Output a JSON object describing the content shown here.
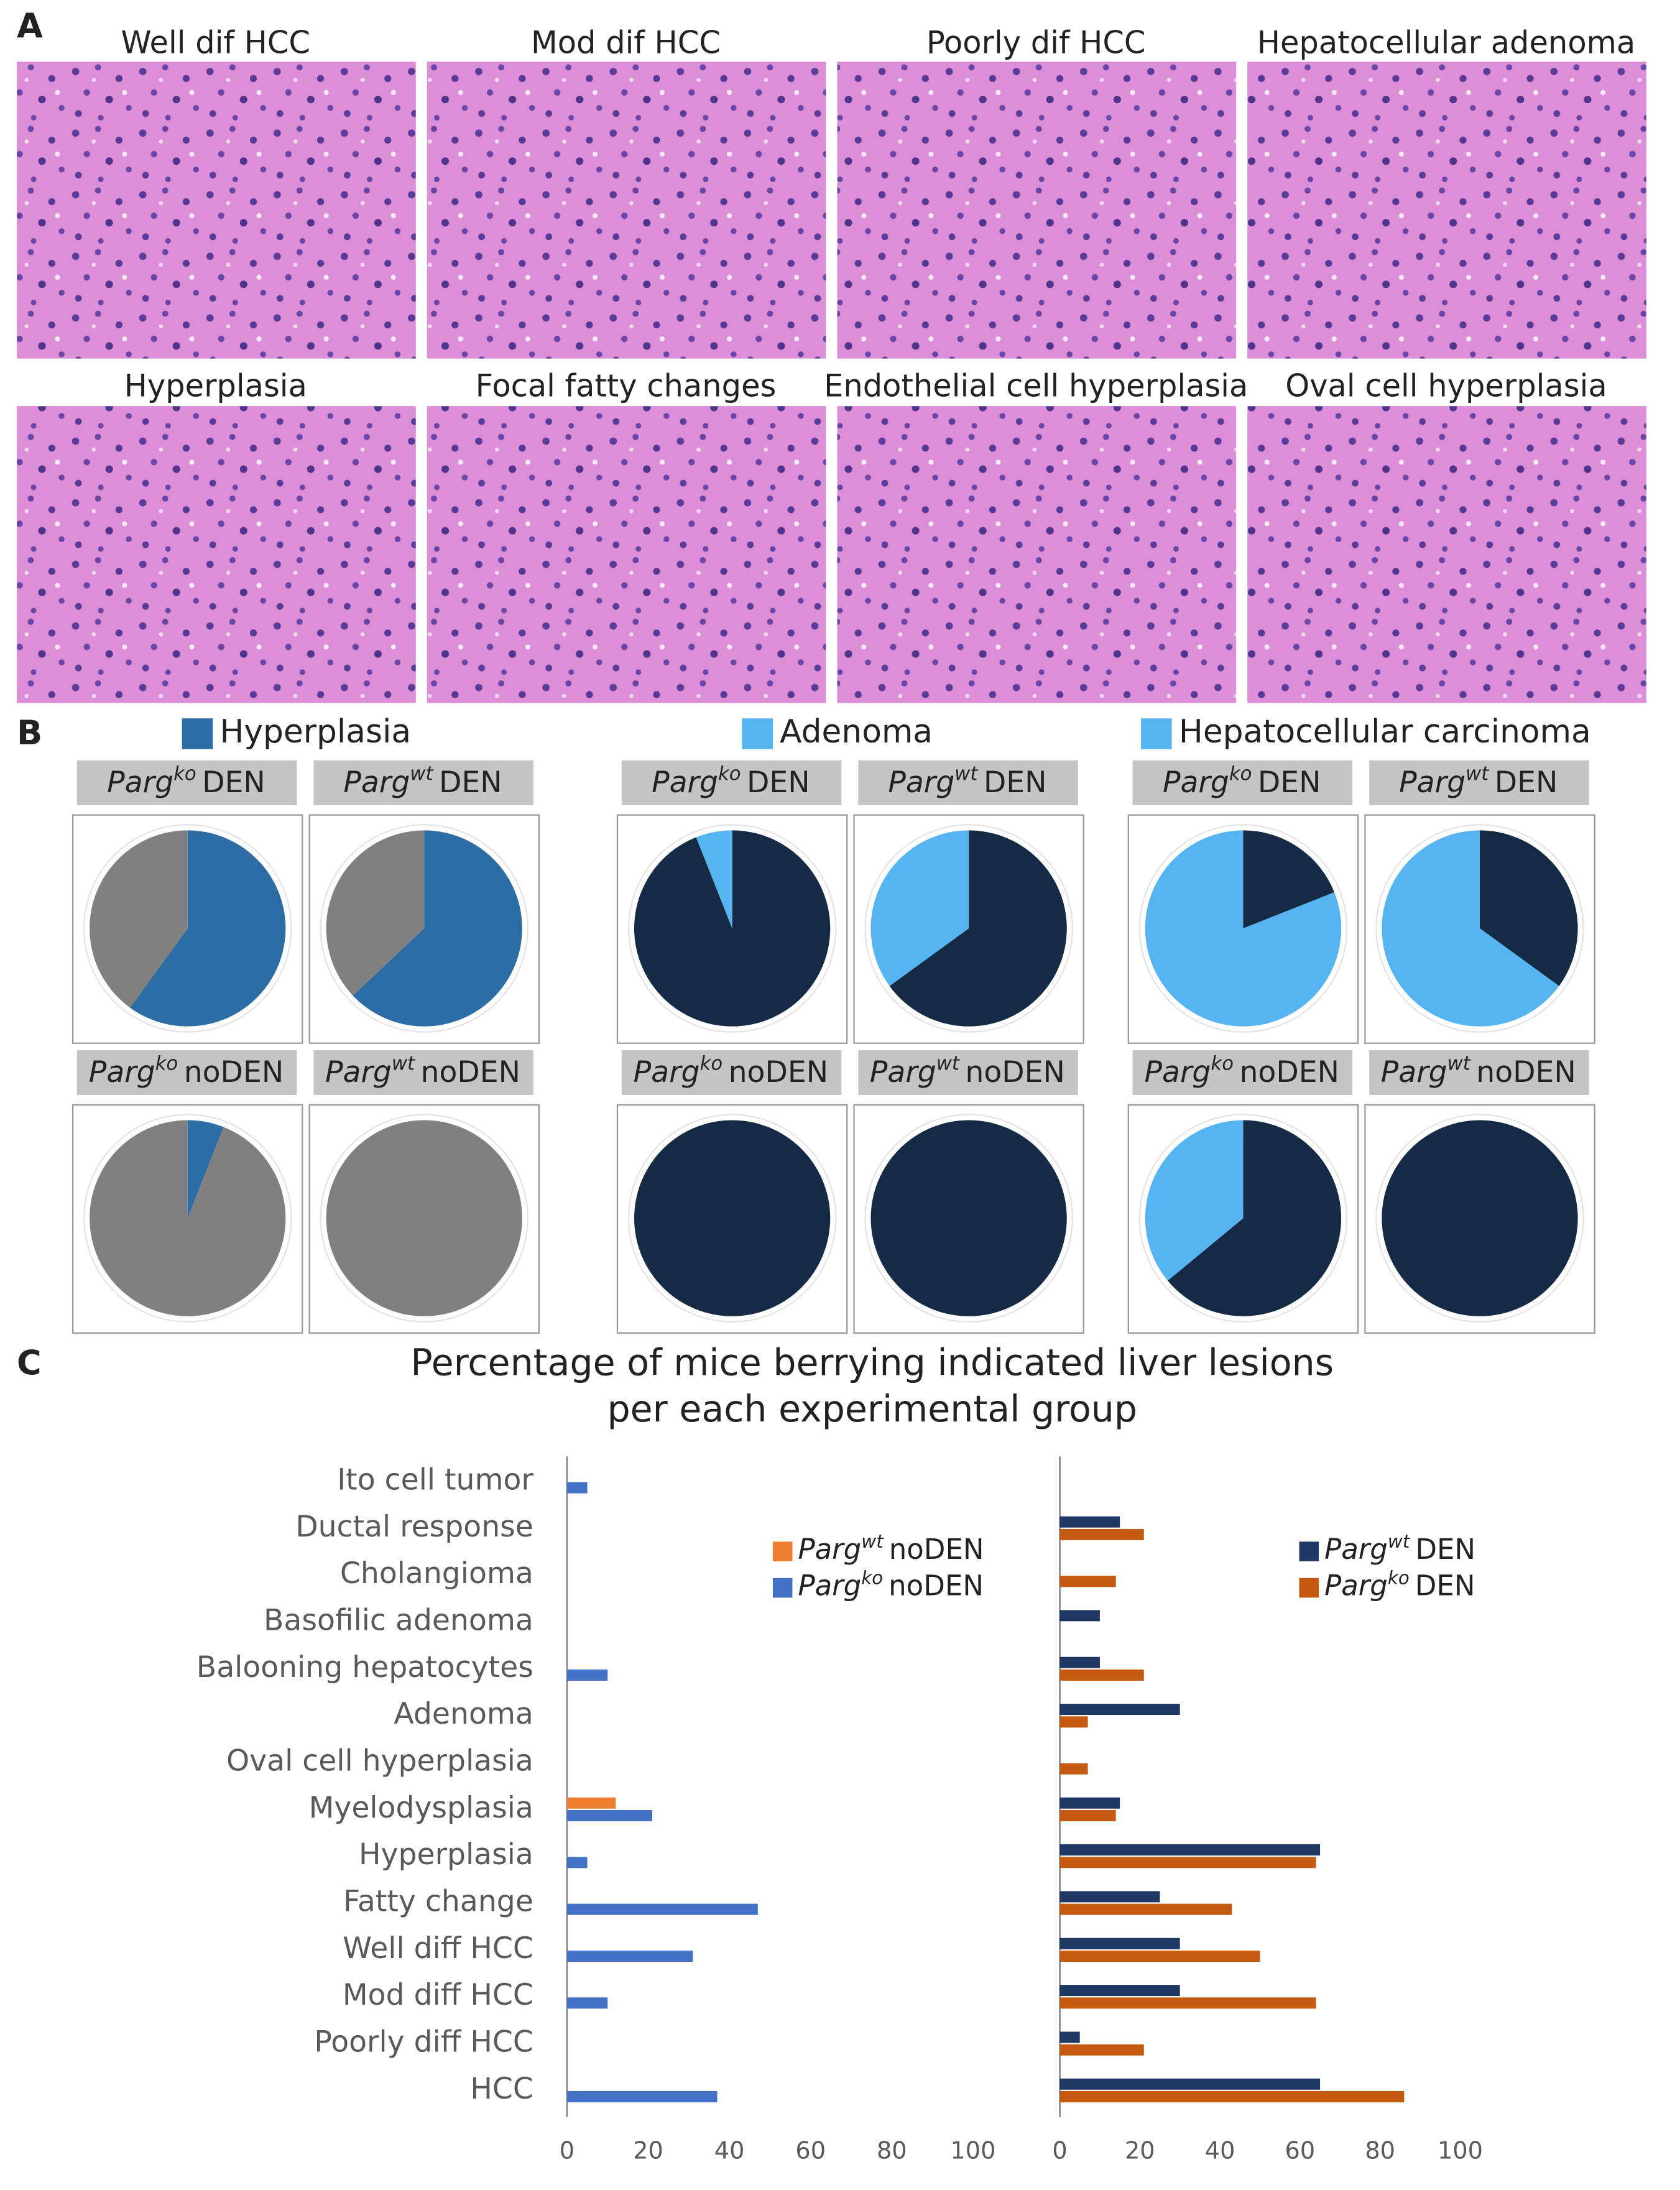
{
  "panel_labels": [
    "A",
    "B",
    "C"
  ],
  "image_labels": [
    "Well dif HCC",
    "Mod dif HCC",
    "Poorly dif HCC",
    "Hepatocellular adenoma",
    "Hyperplasia",
    "Focal fatty changes",
    "Endothelial cell hyperplasia",
    "Oval cell hyperplasia"
  ],
  "chart_data": [
    {
      "type": "pie",
      "legend": {
        "label": "Hyperplasia",
        "color": "#2e6da4"
      },
      "slice_colors": [
        "#2e6da4",
        "#808080"
      ],
      "pies": [
        {
          "label": {
            "gene": "Parg",
            "genotype": "ko",
            "treatment": "DEN"
          },
          "values": [
            60,
            40
          ]
        },
        {
          "label": {
            "gene": "Parg",
            "genotype": "wt",
            "treatment": "DEN"
          },
          "values": [
            63,
            37
          ]
        },
        {
          "label": {
            "gene": "Parg",
            "genotype": "ko",
            "treatment": "noDEN"
          },
          "values": [
            6,
            94
          ]
        },
        {
          "label": {
            "gene": "Parg",
            "genotype": "wt",
            "treatment": "noDEN"
          },
          "values": [
            0,
            100
          ]
        }
      ]
    },
    {
      "type": "pie",
      "legend": {
        "label": "Adenoma",
        "color": "#56b4f0"
      },
      "slice_colors": [
        "#152a45",
        "#56b4f0"
      ],
      "pies": [
        {
          "label": {
            "gene": "Parg",
            "genotype": "ko",
            "treatment": "DEN"
          },
          "values": [
            94,
            6
          ]
        },
        {
          "label": {
            "gene": "Parg",
            "genotype": "wt",
            "treatment": "DEN"
          },
          "values": [
            65,
            35
          ]
        },
        {
          "label": {
            "gene": "Parg",
            "genotype": "ko",
            "treatment": "noDEN"
          },
          "values": [
            100,
            0
          ]
        },
        {
          "label": {
            "gene": "Parg",
            "genotype": "wt",
            "treatment": "noDEN"
          },
          "values": [
            100,
            0
          ]
        }
      ]
    },
    {
      "type": "pie",
      "legend": {
        "label": "Hepatocellular carcinoma",
        "color": "#56b4f0"
      },
      "slice_colors": [
        "#152a45",
        "#56b4f0"
      ],
      "pies": [
        {
          "label": {
            "gene": "Parg",
            "genotype": "ko",
            "treatment": "DEN"
          },
          "values": [
            19,
            81
          ]
        },
        {
          "label": {
            "gene": "Parg",
            "genotype": "wt",
            "treatment": "DEN"
          },
          "values": [
            35,
            65
          ]
        },
        {
          "label": {
            "gene": "Parg",
            "genotype": "ko",
            "treatment": "noDEN"
          },
          "values": [
            64,
            36
          ]
        },
        {
          "label": {
            "gene": "Parg",
            "genotype": "wt",
            "treatment": "noDEN"
          },
          "values": [
            100,
            0
          ]
        }
      ]
    },
    {
      "type": "bar",
      "orientation": "horizontal",
      "title": [
        "Percentage of mice berrying indicated liver lesions",
        "per each experimental group"
      ],
      "categories": [
        "Ito cell tumor",
        "Ductal response",
        "Cholangioma",
        "Basofilic adenoma",
        "Balooning hepatocytes",
        "Adenoma",
        "Oval cell hyperplasia",
        "Myelodysplasia",
        "Hyperplasia",
        "Fatty change",
        "Well diff HCC",
        "Mod diff HCC",
        "Poorly diff HCC",
        "HCC"
      ],
      "subplots": [
        {
          "xlim": [
            0,
            100
          ],
          "xticks": [
            0,
            20,
            40,
            60,
            80,
            100
          ],
          "series": [
            {
              "name": {
                "gene": "Parg",
                "genotype": "wt",
                "treatment": "noDEN"
              },
              "color": "#ed7d31",
              "values": [
                0,
                0,
                0,
                0,
                0,
                0,
                0,
                12,
                0,
                0,
                0,
                0,
                0,
                0
              ]
            },
            {
              "name": {
                "gene": "Parg",
                "genotype": "ko",
                "treatment": "noDEN"
              },
              "color": "#4472c4",
              "values": [
                5,
                0,
                0,
                0,
                10,
                0,
                0,
                21,
                5,
                47,
                31,
                10,
                0,
                37
              ]
            }
          ]
        },
        {
          "xlim": [
            0,
            100
          ],
          "xticks": [
            0,
            20,
            40,
            60,
            80,
            100
          ],
          "series": [
            {
              "name": {
                "gene": "Parg",
                "genotype": "wt",
                "treatment": "DEN"
              },
              "color": "#1f3864",
              "values": [
                0,
                15,
                0,
                10,
                10,
                30,
                0,
                15,
                65,
                25,
                30,
                30,
                5,
                65
              ]
            },
            {
              "name": {
                "gene": "Parg",
                "genotype": "ko",
                "treatment": "DEN"
              },
              "color": "#c55a11",
              "values": [
                0,
                21,
                14,
                0,
                21,
                7,
                7,
                14,
                64,
                43,
                50,
                64,
                21,
                86
              ]
            }
          ]
        }
      ]
    }
  ]
}
